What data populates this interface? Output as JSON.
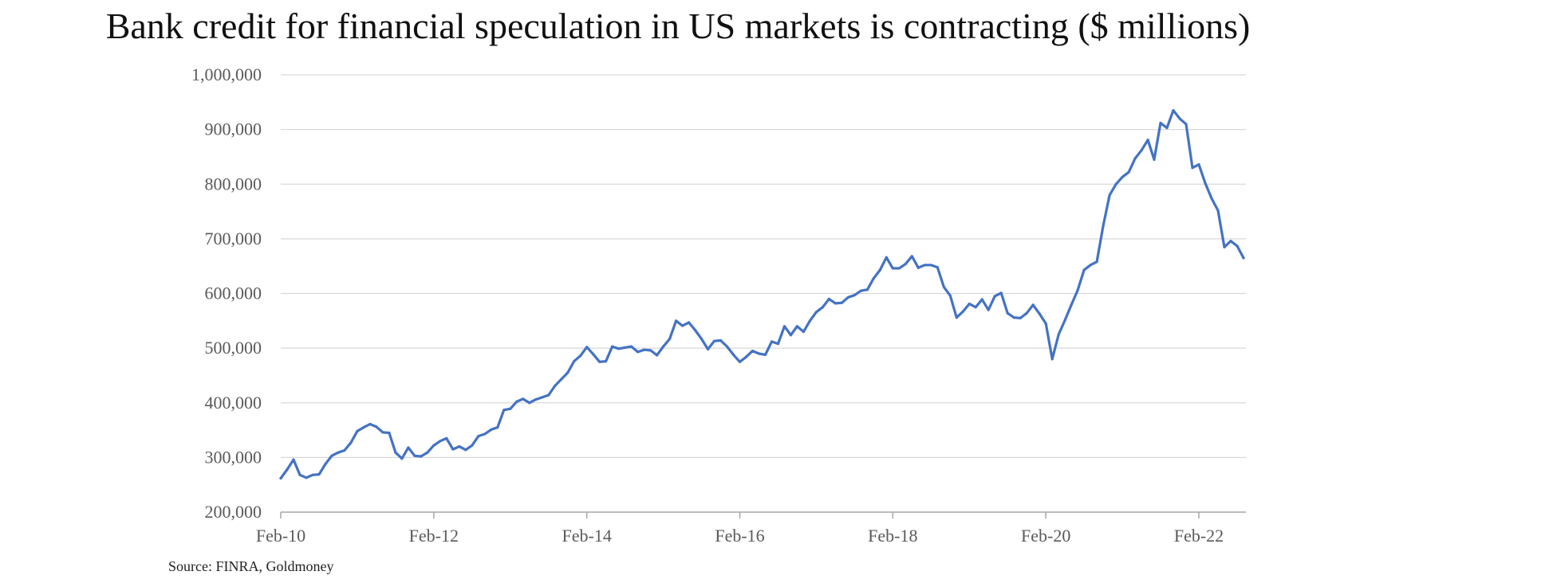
{
  "title": "Bank credit for financial speculation in US markets is contracting ($ millions)",
  "source": "Source: FINRA, Goldmoney",
  "colors": {
    "line": "#4472C4",
    "grid": "#d9d9d9",
    "axis": "#a6a6a6",
    "tick_text": "#595959"
  },
  "chart_data": {
    "type": "line",
    "title": "Bank credit for financial speculation in US markets is contracting ($ millions)",
    "xlabel": "",
    "ylabel": "",
    "ylim": [
      200000,
      1000000
    ],
    "grid": true,
    "legend": "none",
    "y_ticks": [
      "200,000",
      "300,000",
      "400,000",
      "500,000",
      "600,000",
      "700,000",
      "800,000",
      "900,000",
      "1,000,000"
    ],
    "x_ticks": [
      "Feb-10",
      "Feb-12",
      "Feb-14",
      "Feb-16",
      "Feb-18",
      "Feb-20",
      "Feb-22"
    ],
    "x_start": "Feb-10",
    "x_end": "Jul-22",
    "series": [
      {
        "values": [
          262000,
          278000,
          296000,
          268000,
          263000,
          268000,
          269000,
          288000,
          303000,
          309000,
          313000,
          327000,
          348000,
          355000,
          361000,
          356000,
          346000,
          345000,
          309000,
          298000,
          318000,
          303000,
          302000,
          309000,
          322000,
          330000,
          335000,
          315000,
          320000,
          314000,
          322000,
          339000,
          343000,
          351000,
          355000,
          387000,
          389000,
          402000,
          407000,
          400000,
          406000,
          410000,
          414000,
          431000,
          443000,
          455000,
          476000,
          486000,
          502000,
          489000,
          475000,
          476000,
          503000,
          499000,
          501000,
          503000,
          493000,
          497000,
          496000,
          487000,
          503000,
          517000,
          550000,
          541000,
          547000,
          533000,
          517000,
          498000,
          513000,
          514000,
          503000,
          488000,
          475000,
          484000,
          495000,
          490000,
          488000,
          512000,
          508000,
          540000,
          524000,
          540000,
          530000,
          550000,
          566000,
          575000,
          590000,
          582000,
          583000,
          593000,
          597000,
          605000,
          607000,
          628000,
          643000,
          666000,
          646000,
          646000,
          654000,
          668000,
          647000,
          652000,
          652000,
          648000,
          612000,
          596000,
          556000,
          567000,
          581000,
          575000,
          589000,
          570000,
          595000,
          601000,
          564000,
          556000,
          555000,
          564000,
          579000,
          563000,
          545000,
          480000,
          525000,
          551000,
          579000,
          606000,
          643000,
          652000,
          658000,
          724000,
          780000,
          800000,
          813000,
          822000,
          847000,
          862000,
          881000,
          845000,
          912000,
          903000,
          935000,
          920000,
          910000,
          830000,
          836000,
          802000,
          774000,
          752000,
          685000,
          696000,
          687000,
          665000
        ]
      }
    ]
  }
}
